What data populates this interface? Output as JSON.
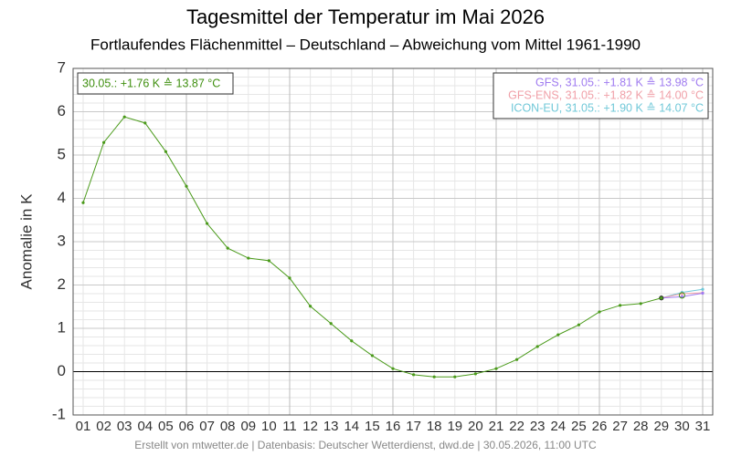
{
  "chart_data": {
    "type": "line",
    "title": "Tagesmittel der Temperatur im Mai 2026",
    "subtitle": "Fortlaufendes Flächenmittel – Deutschland – Abweichung vom Mittel 1961-1990",
    "y_label": "Anomalie in K",
    "footer": "Erstellt von mtwetter.de | Datenbasis: Deutscher Wetterdienst, dwd.de | 30.05.2026, 11:00 UTC",
    "categories": [
      "01",
      "02",
      "03",
      "04",
      "05",
      "06",
      "07",
      "08",
      "09",
      "10",
      "11",
      "12",
      "13",
      "14",
      "15",
      "16",
      "17",
      "18",
      "19",
      "20",
      "21",
      "22",
      "23",
      "24",
      "25",
      "26",
      "27",
      "28",
      "29",
      "30",
      "31"
    ],
    "ylim": [
      -1,
      7
    ],
    "yticks": [
      -1,
      0,
      1,
      2,
      3,
      4,
      5,
      6,
      7
    ],
    "grid": true,
    "current": {
      "x": "30",
      "value": 1.76,
      "label": "30.05.: +1.76 K ≙ 13.87 °C",
      "color": "#3f8f0f"
    },
    "series": [
      {
        "color": "#4a9a1a",
        "values": [
          3.9,
          5.29,
          5.88,
          5.74,
          5.08,
          4.28,
          3.42,
          2.85,
          2.62,
          2.56,
          2.16,
          1.51,
          1.11,
          0.71,
          0.37,
          0.07,
          -0.07,
          -0.12,
          -0.12,
          -0.05,
          0.07,
          0.28,
          0.58,
          0.85,
          1.08,
          1.38,
          1.53,
          1.57,
          1.7,
          null,
          null
        ]
      },
      {
        "name": "GFS, 31.05.: +1.81 K ≙ 13.98 °C",
        "color": "#a07cf0",
        "values": [
          null,
          null,
          null,
          null,
          null,
          null,
          null,
          null,
          null,
          null,
          null,
          null,
          null,
          null,
          null,
          null,
          null,
          null,
          null,
          null,
          null,
          null,
          null,
          null,
          null,
          null,
          null,
          null,
          1.7,
          1.73,
          1.81
        ]
      },
      {
        "name": "GFS-ENS, 31.05.: +1.82 K ≙ 14.00 °C",
        "color": "#f0a0a8",
        "values": [
          null,
          null,
          null,
          null,
          null,
          null,
          null,
          null,
          null,
          null,
          null,
          null,
          null,
          null,
          null,
          null,
          null,
          null,
          null,
          null,
          null,
          null,
          null,
          null,
          null,
          null,
          null,
          null,
          1.7,
          1.8,
          1.82
        ]
      },
      {
        "name": "ICON-EU, 31.05.: +1.90 K ≙ 14.07 °C",
        "color": "#70c8d8",
        "values": [
          null,
          null,
          null,
          null,
          null,
          null,
          null,
          null,
          null,
          null,
          null,
          null,
          null,
          null,
          null,
          null,
          null,
          null,
          null,
          null,
          null,
          null,
          null,
          null,
          null,
          null,
          null,
          null,
          1.7,
          1.83,
          1.9
        ]
      }
    ],
    "legend": "upper right"
  }
}
